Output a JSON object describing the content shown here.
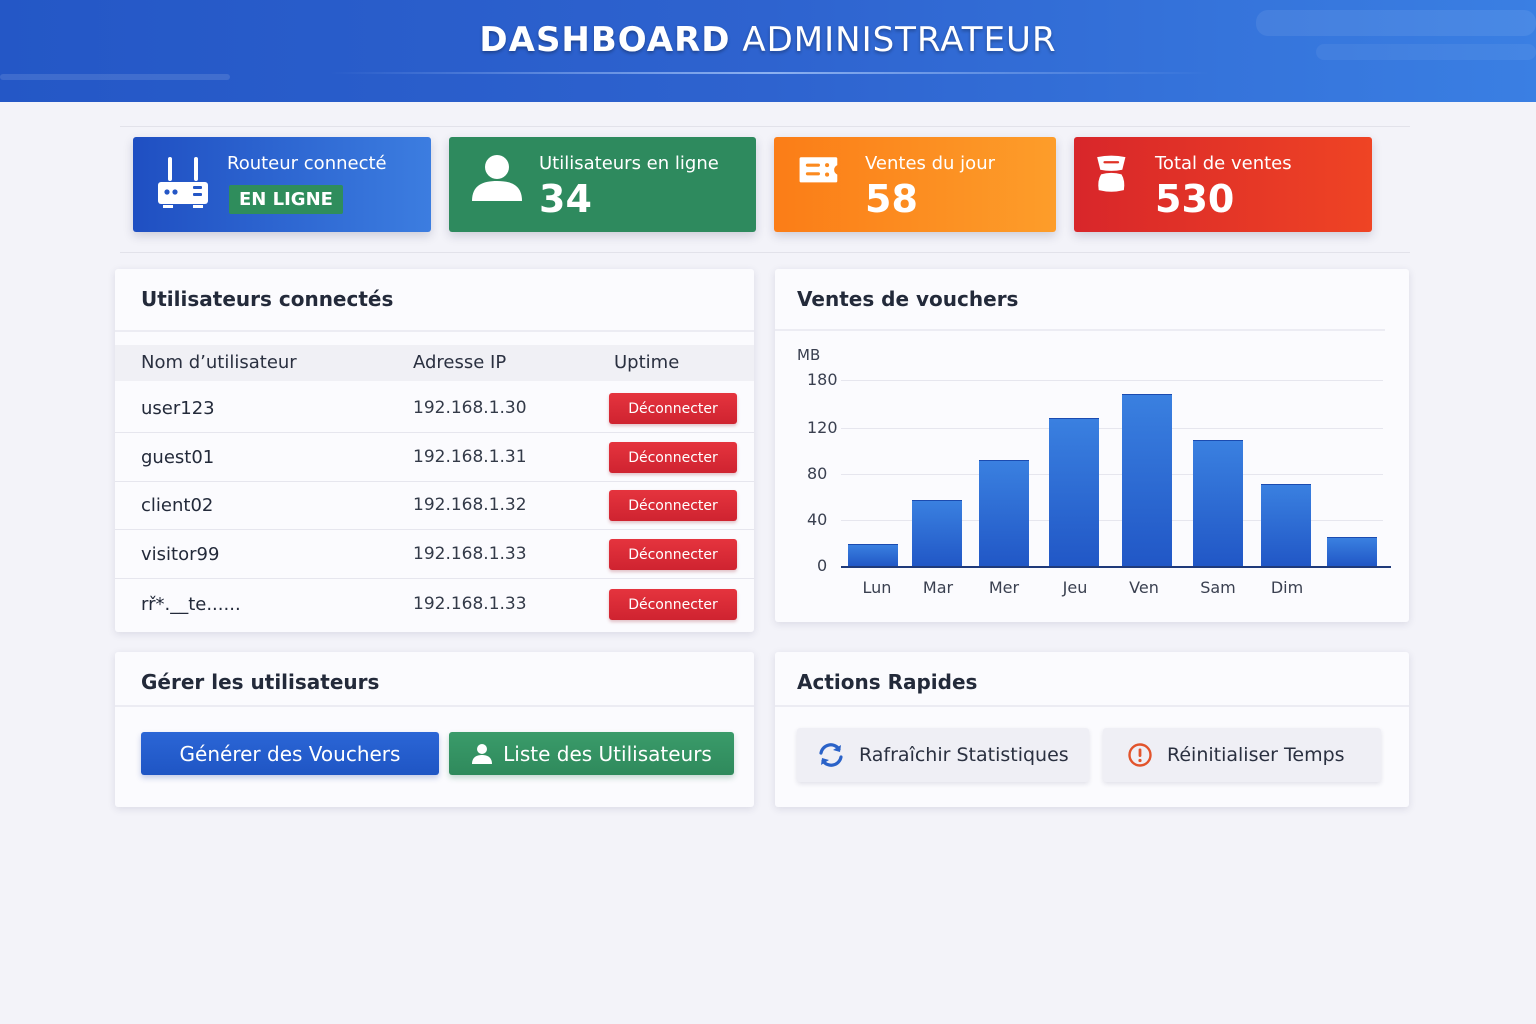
{
  "header": {
    "title_bold": "DASHBOARD",
    "title_rest": "ADMINISTRATEUR"
  },
  "stats": {
    "router": {
      "icon": "router-icon",
      "label": "Routeur connecté",
      "status": "EN LIGNE",
      "color": "#2457c6"
    },
    "online_users": {
      "icon": "user-icon",
      "label": "Utilisateurs en ligne",
      "value": "34",
      "color": "#2e8a5e"
    },
    "daily_sales": {
      "icon": "ticket-icon",
      "label": "Ventes du jour",
      "value": "58",
      "color": "#fb8a1f"
    },
    "total_sales": {
      "icon": "hourglass-icon",
      "label": "Total de ventes",
      "value": "530",
      "color": "#e03226"
    }
  },
  "connected_users": {
    "title": "Utilisateurs connectés",
    "columns": [
      "Nom d’utilisateur",
      "Adresse IP",
      "Uptime"
    ],
    "rows": [
      {
        "name": "user123",
        "ip": "192.168.1.30",
        "action": "Déconnecter"
      },
      {
        "name": "guest01",
        "ip": "192.168.1.31",
        "action": "Déconnecter"
      },
      {
        "name": "client02",
        "ip": "192.168.1.32",
        "action": "Déconnecter"
      },
      {
        "name": "visitor99",
        "ip": "192.168.1.33",
        "action": "Déconnecter"
      },
      {
        "name": "rř*.__te......",
        "ip": "192.168.1.33",
        "action": "Déconnecter"
      }
    ]
  },
  "chart_panel": {
    "title": "Ventes de vouchers"
  },
  "chart_data": {
    "type": "bar",
    "title": "Ventes de vouchers",
    "xlabel": "",
    "ylabel": "MB",
    "y_ticks": [
      0,
      40,
      80,
      120,
      180
    ],
    "ylim": [
      0,
      180
    ],
    "grid": true,
    "legend": null,
    "categories": [
      "Lun",
      "Mar",
      "Mer",
      "Jeu",
      "Ven",
      "Sam",
      "Dim",
      ""
    ],
    "values": [
      19,
      57,
      92,
      129,
      150,
      110,
      71,
      25
    ],
    "bar_color": "#2b66d6"
  },
  "manage": {
    "title": "Gérer les utilisateurs",
    "generate_label": "Générer des Vouchers",
    "list_label": "Liste des Utilisateurs"
  },
  "actions": {
    "title": "Actions Rapides",
    "refresh_label": "Rafraîchir Statistiques",
    "reset_label": "Réinitialiser Temps"
  }
}
